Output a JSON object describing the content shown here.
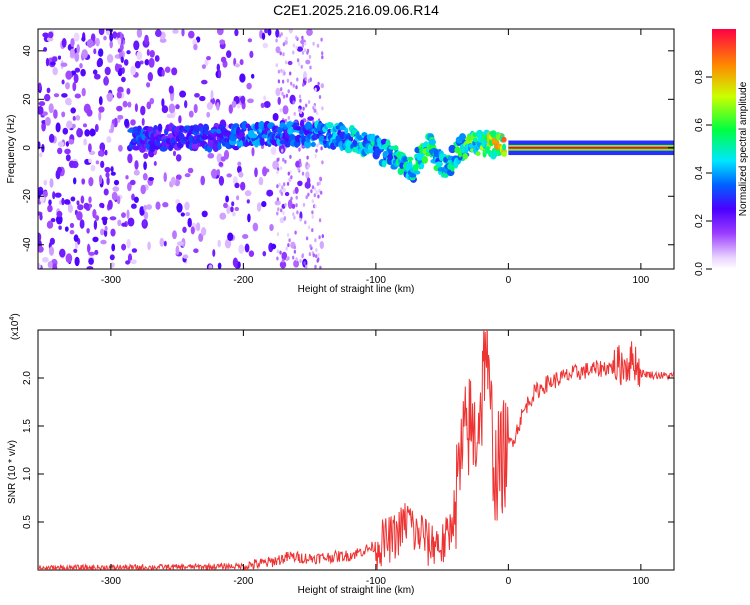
{
  "title": "C2E1.2025.216.09.06.R14",
  "chart_data": [
    {
      "type": "heatmap",
      "xlabel": "Height of straight line (km)",
      "ylabel": "Frequency (Hz)",
      "xlim": [
        -355,
        125
      ],
      "ylim": [
        -50,
        49
      ],
      "xticks": [
        -300,
        -200,
        -100,
        0,
        100
      ],
      "yticks": [
        -40,
        -20,
        0,
        20,
        40
      ],
      "colorbar": {
        "label": "Normalized spectral amplitude",
        "range": [
          0,
          1
        ],
        "ticks": [
          0.0,
          0.2,
          0.4,
          0.6,
          0.8
        ],
        "tick_labels": [
          "0.0",
          "0.2",
          "0.4",
          "0.6",
          "0.8"
        ],
        "colormap": "rainbow (white-purple-blue-cyan-green-yellow-red)"
      },
      "ridge": [
        {
          "x": -280,
          "freq": 4,
          "amp": 0.35
        },
        {
          "x": -250,
          "freq": 4,
          "amp": 0.3
        },
        {
          "x": -220,
          "freq": 4,
          "amp": 0.35
        },
        {
          "x": -190,
          "freq": 6,
          "amp": 0.4
        },
        {
          "x": -160,
          "freq": 6,
          "amp": 0.4
        },
        {
          "x": -130,
          "freq": 5,
          "amp": 0.45
        },
        {
          "x": -110,
          "freq": 2,
          "amp": 0.5
        },
        {
          "x": -90,
          "freq": -3,
          "amp": 0.5
        },
        {
          "x": -72,
          "freq": -9,
          "amp": 0.55
        },
        {
          "x": -60,
          "freq": 2,
          "amp": 0.6
        },
        {
          "x": -48,
          "freq": -9,
          "amp": 0.5
        },
        {
          "x": -35,
          "freq": 0,
          "amp": 0.6
        },
        {
          "x": -20,
          "freq": 2,
          "amp": 0.7
        },
        {
          "x": -5,
          "freq": 1,
          "amp": 0.8
        },
        {
          "x": 0,
          "freq": 0,
          "amp": 1.0
        },
        {
          "x": 125,
          "freq": 0,
          "amp": 1.0
        }
      ]
    },
    {
      "type": "line",
      "xlabel": "Height of straight line (km)",
      "ylabel": "SNR (10 * v/v)",
      "yscale_label": "(x10",
      "yscale_exp": "4",
      "xlim": [
        -355,
        125
      ],
      "ylim": [
        0,
        25000
      ],
      "xticks": [
        -300,
        -200,
        -100,
        0,
        100
      ],
      "yticks": [
        5000,
        10000,
        15000,
        20000
      ],
      "ytick_labels": [
        "0.5",
        "1.0",
        "1.5",
        "2.0"
      ],
      "color": "#ee3333",
      "series": [
        {
          "x": [
            -355,
            -250,
            -200,
            -180,
            -165,
            -150,
            -120,
            -100,
            -85,
            -75,
            -70,
            -65,
            -60,
            -55,
            -50,
            -45,
            -40,
            -35,
            -30,
            -25,
            -20,
            -17,
            -15,
            -12,
            -10,
            -5,
            0,
            5,
            10,
            15,
            20,
            30,
            40,
            50,
            60,
            70,
            80,
            90,
            95,
            100,
            110,
            125
          ],
          "y": [
            200,
            300,
            400,
            800,
            1400,
            1200,
            1500,
            2500,
            3500,
            5500,
            3500,
            4000,
            2500,
            3000,
            2500,
            3500,
            7000,
            12000,
            15000,
            14000,
            18000,
            25000,
            18000,
            14000,
            10000,
            11500,
            13000,
            14000,
            16000,
            17500,
            18500,
            19500,
            20000,
            20500,
            20800,
            21000,
            21200,
            21500,
            22000,
            20500,
            20300,
            20200
          ]
        }
      ]
    }
  ]
}
